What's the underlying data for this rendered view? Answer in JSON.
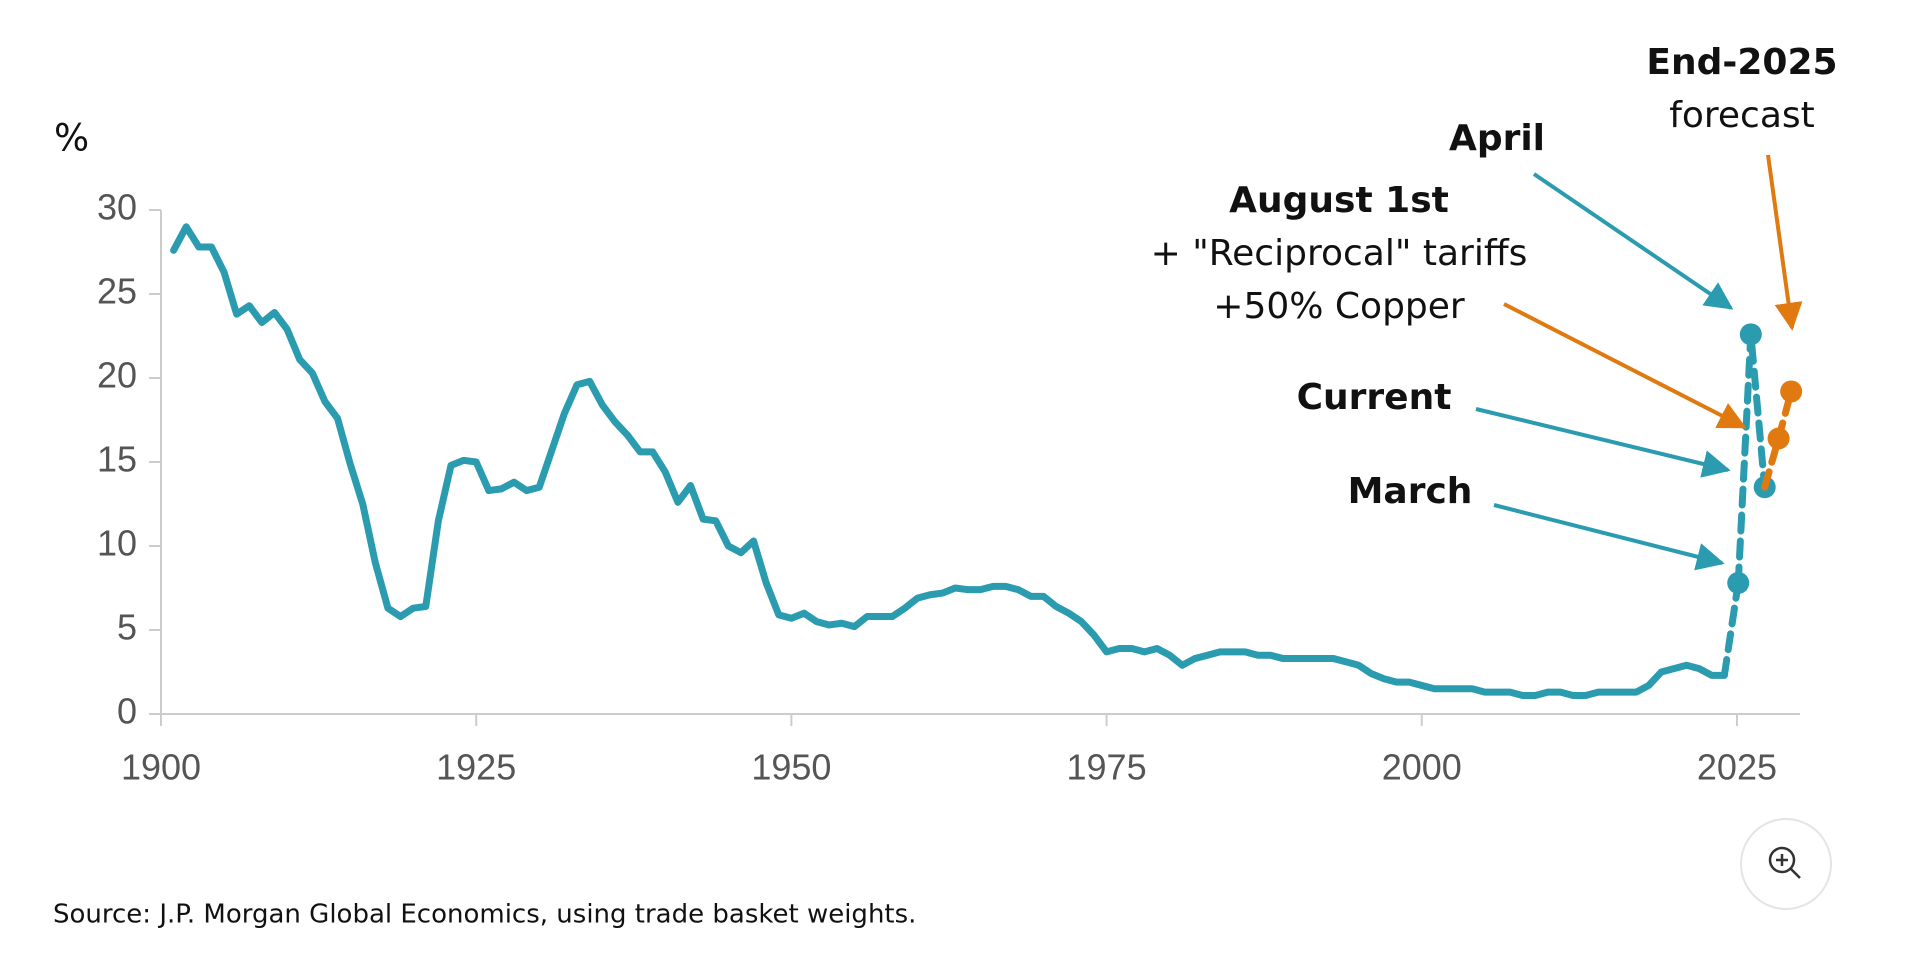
{
  "chart_data": {
    "type": "line",
    "y_unit_label": "%",
    "xlim": [
      1900,
      2030
    ],
    "xticks": [
      1900,
      1925,
      1950,
      1975,
      2000,
      2025
    ],
    "ylim": [
      0,
      30
    ],
    "yticks": [
      0,
      5,
      10,
      15,
      20,
      25,
      30
    ],
    "series": [
      {
        "color": "#2b9bb0",
        "dashed": false,
        "markers": false,
        "x": [
          1901,
          1902,
          1903,
          1904,
          1905,
          1906,
          1907,
          1908,
          1909,
          1910,
          1911,
          1912,
          1913,
          1914,
          1915,
          1916,
          1917,
          1918,
          1919,
          1920,
          1921,
          1922,
          1923,
          1924,
          1925,
          1926,
          1927,
          1928,
          1929,
          1930,
          1931,
          1932,
          1933,
          1934,
          1935,
          1936,
          1937,
          1938,
          1939,
          1940,
          1941,
          1942,
          1943,
          1944,
          1945,
          1946,
          1947,
          1948,
          1949,
          1950,
          1951,
          1952,
          1953,
          1954,
          1955,
          1956,
          1957,
          1958,
          1959,
          1960,
          1961,
          1962,
          1963,
          1964,
          1965,
          1966,
          1967,
          1968,
          1969,
          1970,
          1971,
          1972,
          1973,
          1974,
          1975,
          1976,
          1977,
          1978,
          1979,
          1980,
          1981,
          1982,
          1983,
          1984,
          1985,
          1986,
          1987,
          1988,
          1989,
          1990,
          1991,
          1992,
          1993,
          1994,
          1995,
          1996,
          1997,
          1998,
          1999,
          2000,
          2001,
          2002,
          2003,
          2004,
          2005,
          2006,
          2007,
          2008,
          2009,
          2010,
          2011,
          2012,
          2013,
          2014,
          2015,
          2016,
          2017,
          2018,
          2019,
          2020,
          2021,
          2022,
          2023,
          2024
        ],
        "values": [
          27.6,
          29.0,
          27.8,
          27.8,
          26.3,
          23.8,
          24.3,
          23.3,
          23.9,
          22.9,
          21.1,
          20.3,
          18.6,
          17.6,
          14.9,
          12.5,
          9.0,
          6.3,
          5.8,
          6.3,
          6.4,
          11.5,
          14.8,
          15.1,
          15.0,
          13.3,
          13.4,
          13.8,
          13.3,
          13.5,
          15.7,
          17.9,
          19.6,
          19.8,
          18.4,
          17.4,
          16.6,
          15.6,
          15.6,
          14.4,
          12.6,
          13.6,
          11.6,
          11.5,
          10.0,
          9.6,
          10.3,
          7.8,
          5.9,
          5.7,
          6.0,
          5.5,
          5.3,
          5.4,
          5.2,
          5.8,
          5.8,
          5.8,
          6.3,
          6.9,
          7.1,
          7.2,
          7.5,
          7.4,
          7.4,
          7.6,
          7.6,
          7.4,
          7.0,
          7.0,
          6.4,
          6.0,
          5.5,
          4.7,
          3.7,
          3.9,
          3.9,
          3.7,
          3.9,
          3.5,
          2.9,
          3.3,
          3.5,
          3.7,
          3.7,
          3.7,
          3.5,
          3.5,
          3.3,
          3.3,
          3.3,
          3.3,
          3.3,
          3.1,
          2.9,
          2.4,
          2.1,
          1.9,
          1.9,
          1.7,
          1.5,
          1.5,
          1.5,
          1.5,
          1.3,
          1.3,
          1.3,
          1.1,
          1.1,
          1.3,
          1.3,
          1.1,
          1.1,
          1.3,
          1.3,
          1.3,
          1.3,
          1.7,
          2.5,
          2.7,
          2.9,
          2.7,
          2.3,
          2.3
        ]
      },
      {
        "color": "#2b9bb0",
        "dashed": true,
        "markers": true,
        "x": [
          2025.1,
          2026.1,
          2027.2
        ],
        "values": [
          7.8,
          22.6,
          13.5
        ]
      },
      {
        "color": "#e07a10",
        "dashed": true,
        "markers": true,
        "x": [
          2028.3,
          2029.3
        ],
        "values": [
          16.4,
          19.2
        ]
      }
    ],
    "annotations": [
      {
        "lines": [
          "End-2025",
          "forecast"
        ],
        "color": "#e07a10",
        "bold": true
      },
      {
        "lines": [
          "April"
        ],
        "color": "#2b9bb0",
        "bold": true
      },
      {
        "lines": [
          "August 1st",
          "+ \"Reciprocal\" tariffs",
          "+50% Copper"
        ],
        "color": "#e07a10",
        "bold": true
      },
      {
        "lines": [
          "Current"
        ],
        "color": "#2b9bb0",
        "bold": true
      },
      {
        "lines": [
          "March"
        ],
        "color": "#2b9bb0",
        "bold": true
      }
    ],
    "source": "Source: J.P. Morgan Global Economics, using trade basket weights."
  }
}
